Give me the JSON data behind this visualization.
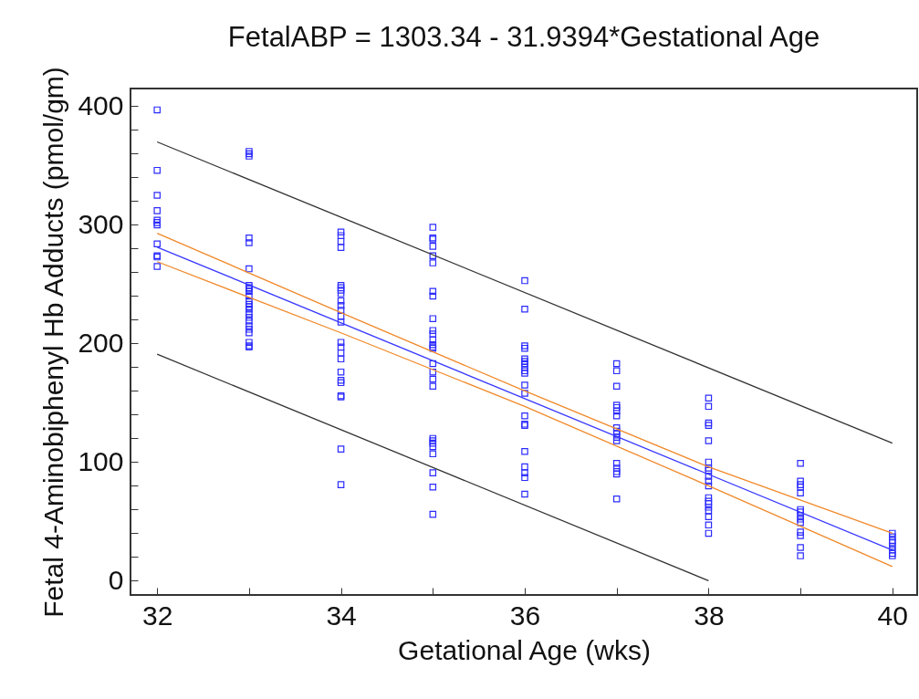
{
  "chart_data": {
    "type": "scatter",
    "title": "FetalABP = 1303.34 - 31.9394*Gestational Age",
    "xlabel": "Getational Age (wks)",
    "ylabel": "Fetal 4-Aminobiphenyl Hb Adducts (pmol/gm)",
    "xlim": [
      31.71,
      40.27
    ],
    "ylim": [
      -12,
      415
    ],
    "xticks": [
      32,
      {
        "value": 33,
        "label": null
      },
      34,
      {
        "value": 35,
        "label": null
      },
      36,
      {
        "value": 37,
        "label": null
      },
      38,
      {
        "value": 39,
        "label": null
      },
      40
    ],
    "yticks": [
      0,
      {
        "value": 20,
        "label": null
      },
      {
        "value": 40,
        "label": null
      },
      {
        "value": 60,
        "label": null
      },
      {
        "value": 80,
        "label": null
      },
      100,
      {
        "value": 120,
        "label": null
      },
      {
        "value": 140,
        "label": null
      },
      {
        "value": 160,
        "label": null
      },
      {
        "value": 180,
        "label": null
      },
      200,
      {
        "value": 220,
        "label": null
      },
      {
        "value": 240,
        "label": null
      },
      {
        "value": 260,
        "label": null
      },
      {
        "value": 280,
        "label": null
      },
      300,
      {
        "value": 320,
        "label": null
      },
      {
        "value": 340,
        "label": null
      },
      {
        "value": 360,
        "label": null
      },
      {
        "value": 380,
        "label": null
      },
      400
    ],
    "grid": false,
    "series": [
      {
        "color": "#2b2bff",
        "marker": "square",
        "x": [
          32,
          32,
          32,
          32,
          32,
          32,
          32,
          32,
          32,
          32,
          32,
          33,
          33,
          33,
          33,
          33,
          33,
          33,
          33,
          33,
          33,
          33,
          33,
          33,
          33,
          33,
          33,
          33,
          33,
          33,
          33,
          33,
          33,
          33,
          33,
          34,
          34,
          34,
          34,
          34,
          34,
          34,
          34,
          34,
          34,
          34,
          34,
          34,
          34,
          34,
          34,
          34,
          34,
          34,
          34,
          34,
          34,
          34,
          34,
          35,
          35,
          35,
          35,
          35,
          35,
          35,
          35,
          35,
          35,
          35,
          35,
          35,
          35,
          35,
          35,
          35,
          35,
          35,
          35,
          35,
          35,
          35,
          35,
          35,
          35,
          35,
          36,
          36,
          36,
          36,
          36,
          36,
          36,
          36,
          36,
          36,
          36,
          36,
          36,
          36,
          36,
          36,
          36,
          36,
          36,
          36,
          37,
          37,
          37,
          37,
          37,
          37,
          37,
          37,
          37,
          37,
          37,
          37,
          37,
          37,
          37,
          37,
          37,
          38,
          38,
          38,
          38,
          38,
          38,
          38,
          38,
          38,
          38,
          38,
          38,
          38,
          38,
          38,
          38,
          38,
          38,
          38,
          39,
          39,
          39,
          39,
          39,
          39,
          39,
          39,
          39,
          39,
          39,
          39,
          39,
          39,
          40,
          40,
          40,
          40,
          40,
          40,
          40,
          40
        ],
        "values": [
          397,
          346,
          325,
          312,
          304,
          302,
          300,
          284,
          274,
          273,
          265,
          362,
          360,
          358,
          289,
          285,
          263,
          249,
          247,
          246,
          244,
          240,
          236,
          233,
          231,
          229,
          225,
          222,
          219,
          215,
          212,
          209,
          201,
          198,
          197,
          294,
          291,
          286,
          281,
          249,
          247,
          245,
          242,
          236,
          232,
          228,
          223,
          218,
          201,
          197,
          192,
          187,
          176,
          169,
          167,
          156,
          155,
          111,
          81,
          298,
          289,
          288,
          282,
          274,
          268,
          244,
          240,
          221,
          211,
          208,
          203,
          199,
          197,
          196,
          183,
          176,
          170,
          164,
          120,
          118,
          116,
          113,
          107,
          91,
          79,
          56,
          253,
          229,
          198,
          196,
          187,
          185,
          183,
          180,
          177,
          175,
          165,
          158,
          139,
          132,
          131,
          109,
          96,
          91,
          87,
          73,
          183,
          177,
          164,
          148,
          146,
          143,
          139,
          129,
          126,
          124,
          121,
          118,
          99,
          95,
          92,
          90,
          69,
          154,
          147,
          133,
          131,
          118,
          100,
          95,
          93,
          88,
          84,
          80,
          70,
          67,
          65,
          62,
          59,
          54,
          47,
          40,
          99,
          84,
          81,
          79,
          74,
          60,
          58,
          55,
          52,
          49,
          41,
          38,
          28,
          21,
          40,
          37,
          34,
          32,
          29,
          26,
          23,
          21
        ]
      },
      {
        "type": "line",
        "color": "#3a3aff",
        "x": [
          32,
          40
        ],
        "values": [
          281.3,
          25.8
        ]
      },
      {
        "type": "line",
        "color": "#f0892a",
        "x": [
          32,
          34,
          36,
          38,
          40
        ],
        "values": [
          293,
          226,
          160,
          96,
          40
        ]
      },
      {
        "type": "line",
        "color": "#f0892a",
        "x": [
          32,
          34,
          36,
          38,
          40
        ],
        "values": [
          269,
          209,
          147,
          80,
          12
        ]
      },
      {
        "type": "line",
        "color": "#333333",
        "x": [
          32,
          40
        ],
        "values": [
          370,
          116
        ]
      },
      {
        "type": "line",
        "color": "#333333",
        "x": [
          32,
          38
        ],
        "values": [
          191,
          0
        ]
      }
    ]
  }
}
